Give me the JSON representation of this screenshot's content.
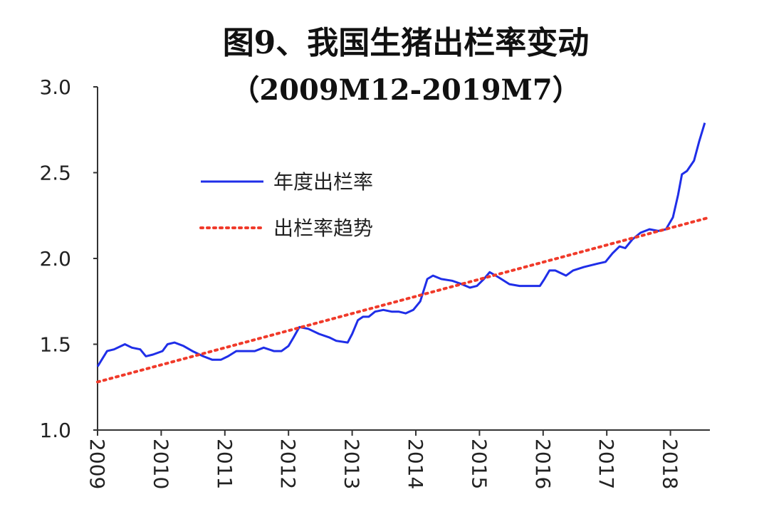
{
  "chart_data": {
    "type": "line",
    "title": "图9、我国生猪出栏率变动",
    "subtitle": "（2009M12-2019M7）",
    "xlim": [
      2009,
      2018.62
    ],
    "xticks": [
      2009,
      2010,
      2011,
      2012,
      2013,
      2014,
      2015,
      2016,
      2017,
      2018
    ],
    "ylim": [
      1.0,
      3.0
    ],
    "yticks": [
      {
        "value": 1.0,
        "label": "1.0"
      },
      1.5,
      {
        "value": 2.0,
        "label": "2.0"
      },
      2.5,
      {
        "value": 3.0,
        "label": "3.0"
      }
    ],
    "series": [
      {
        "name": "年度出栏率",
        "color": "#1f2ee8",
        "style": "solid",
        "x": [
          2009.0,
          2009.15,
          2009.26,
          2009.43,
          2009.54,
          2009.67,
          2009.76,
          2009.87,
          2010.02,
          2010.1,
          2010.21,
          2010.35,
          2010.49,
          2010.66,
          2010.8,
          2010.94,
          2011.05,
          2011.18,
          2011.33,
          2011.47,
          2011.61,
          2011.77,
          2011.89,
          2012.0,
          2012.08,
          2012.17,
          2012.31,
          2012.48,
          2012.64,
          2012.75,
          2012.93,
          2013.0,
          2013.09,
          2013.17,
          2013.26,
          2013.36,
          2013.49,
          2013.62,
          2013.73,
          2013.84,
          2013.96,
          2014.07,
          2014.18,
          2014.27,
          2014.4,
          2014.57,
          2014.72,
          2014.85,
          2014.96,
          2015.07,
          2015.16,
          2015.3,
          2015.47,
          2015.63,
          2015.8,
          2015.95,
          2016.02,
          2016.1,
          2016.19,
          2016.36,
          2016.47,
          2016.64,
          2016.86,
          2016.98,
          2017.09,
          2017.2,
          2017.29,
          2017.4,
          2017.53,
          2017.67,
          2017.81,
          2017.93,
          2018.04,
          2018.12,
          2018.18,
          2018.26,
          2018.37,
          2018.45,
          2018.54
        ],
        "values": [
          1.37,
          1.46,
          1.47,
          1.5,
          1.48,
          1.47,
          1.43,
          1.44,
          1.46,
          1.5,
          1.51,
          1.49,
          1.46,
          1.43,
          1.41,
          1.41,
          1.43,
          1.46,
          1.46,
          1.46,
          1.48,
          1.46,
          1.46,
          1.49,
          1.54,
          1.6,
          1.59,
          1.56,
          1.54,
          1.52,
          1.51,
          1.56,
          1.64,
          1.66,
          1.66,
          1.69,
          1.7,
          1.69,
          1.69,
          1.68,
          1.7,
          1.75,
          1.88,
          1.9,
          1.88,
          1.87,
          1.85,
          1.83,
          1.84,
          1.88,
          1.92,
          1.89,
          1.85,
          1.84,
          1.84,
          1.84,
          1.88,
          1.93,
          1.93,
          1.9,
          1.93,
          1.95,
          1.97,
          1.98,
          2.03,
          2.07,
          2.06,
          2.11,
          2.15,
          2.17,
          2.16,
          2.17,
          2.24,
          2.37,
          2.49,
          2.51,
          2.57,
          2.68,
          2.79
        ]
      },
      {
        "name": "出栏率趋势",
        "color": "#f03a2a",
        "style": "dotted",
        "x": [
          2009,
          2018.62
        ],
        "values": [
          1.28,
          2.24
        ]
      }
    ]
  }
}
